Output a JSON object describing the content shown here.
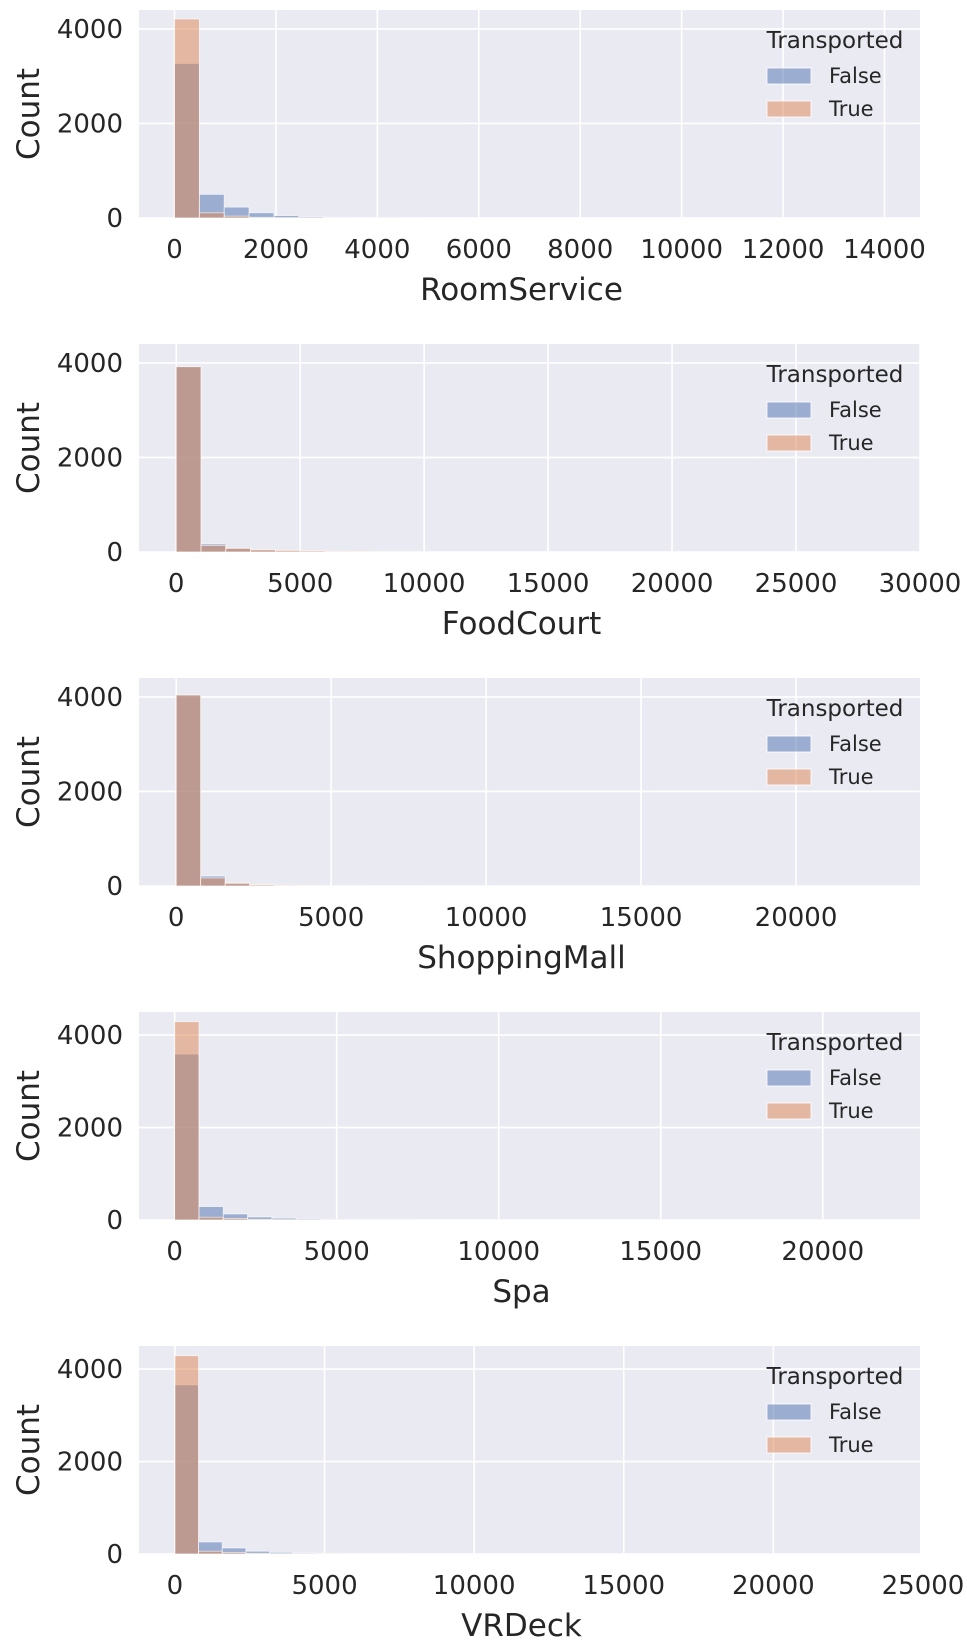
{
  "colors": {
    "background": "#EAEAF2",
    "grid": "#FFFFFF",
    "false_series": "#4C72B0",
    "true_series": "#DD8452",
    "overlap": "#8C7F94",
    "text": "#262626"
  },
  "chart_data": [
    {
      "type": "bar",
      "subtype": "overlaid-histogram",
      "xlabel": "RoomService",
      "ylabel": "Count",
      "xlim": [
        -700,
        14700
      ],
      "ylim": [
        0,
        4400
      ],
      "xticks": [
        0,
        2000,
        4000,
        6000,
        8000,
        10000,
        12000,
        14000
      ],
      "xtick_labels": [
        "0",
        "2000",
        "4000",
        "6000",
        "8000",
        "10000",
        "12000",
        "14000"
      ],
      "yticks": [
        0,
        2000,
        4000
      ],
      "ytick_labels": [
        "0",
        "2000",
        "4000"
      ],
      "grid": true,
      "bin_start": 0,
      "bin_width": 490,
      "legend": {
        "title": "Transported",
        "position": "top-right",
        "entries": [
          "False",
          "True"
        ]
      },
      "series": [
        {
          "name": "False",
          "values": [
            3270,
            500,
            230,
            110,
            50,
            25,
            12,
            6,
            4,
            2
          ]
        },
        {
          "name": "True",
          "values": [
            4210,
            110,
            40,
            15,
            8,
            4,
            2,
            1,
            0,
            0
          ]
        }
      ]
    },
    {
      "type": "bar",
      "subtype": "overlaid-histogram",
      "xlabel": "FoodCourt",
      "ylabel": "Count",
      "xlim": [
        -1500,
        30000
      ],
      "ylim": [
        0,
        4400
      ],
      "xticks": [
        0,
        5000,
        10000,
        15000,
        20000,
        25000,
        30000
      ],
      "xtick_labels": [
        "0",
        "5000",
        "10000",
        "15000",
        "20000",
        "25000",
        "30000"
      ],
      "yticks": [
        0,
        2000,
        4000
      ],
      "ytick_labels": [
        "0",
        "2000",
        "4000"
      ],
      "grid": true,
      "bin_start": 0,
      "bin_width": 1000,
      "legend": {
        "title": "Transported",
        "position": "top-right",
        "entries": [
          "False",
          "True"
        ]
      },
      "series": [
        {
          "name": "False",
          "values": [
            3920,
            170,
            70,
            35,
            20,
            10,
            5,
            3,
            2,
            1
          ]
        },
        {
          "name": "True",
          "values": [
            3920,
            140,
            80,
            50,
            35,
            25,
            15,
            10,
            6,
            4
          ]
        }
      ]
    },
    {
      "type": "bar",
      "subtype": "overlaid-histogram",
      "xlabel": "ShoppingMall",
      "ylabel": "Count",
      "xlim": [
        -1200,
        24000
      ],
      "ylim": [
        0,
        4400
      ],
      "xticks": [
        0,
        5000,
        10000,
        15000,
        20000
      ],
      "xtick_labels": [
        "0",
        "5000",
        "10000",
        "15000",
        "20000"
      ],
      "yticks": [
        0,
        2000,
        4000
      ],
      "ytick_labels": [
        "0",
        "2000",
        "4000"
      ],
      "grid": true,
      "bin_start": 0,
      "bin_width": 790,
      "legend": {
        "title": "Transported",
        "position": "top-right",
        "entries": [
          "False",
          "True"
        ]
      },
      "series": [
        {
          "name": "False",
          "values": [
            4040,
            210,
            50,
            20,
            10,
            5,
            3,
            2,
            1,
            1
          ]
        },
        {
          "name": "True",
          "values": [
            4040,
            170,
            60,
            25,
            15,
            8,
            4,
            2,
            1,
            1
          ]
        }
      ]
    },
    {
      "type": "bar",
      "subtype": "overlaid-histogram",
      "xlabel": "Spa",
      "ylabel": "Count",
      "xlim": [
        -1100,
        23000
      ],
      "ylim": [
        0,
        4500
      ],
      "xticks": [
        0,
        5000,
        10000,
        15000,
        20000
      ],
      "xtick_labels": [
        "0",
        "5000",
        "10000",
        "15000",
        "20000"
      ],
      "yticks": [
        0,
        2000,
        4000
      ],
      "ytick_labels": [
        "0",
        "2000",
        "4000"
      ],
      "grid": true,
      "bin_start": 0,
      "bin_width": 750,
      "legend": {
        "title": "Transported",
        "position": "top-right",
        "entries": [
          "False",
          "True"
        ]
      },
      "series": [
        {
          "name": "False",
          "values": [
            3590,
            290,
            130,
            65,
            40,
            25,
            15,
            10,
            6,
            4
          ]
        },
        {
          "name": "True",
          "values": [
            4290,
            60,
            30,
            15,
            8,
            5,
            3,
            2,
            1,
            1
          ]
        }
      ]
    },
    {
      "type": "bar",
      "subtype": "overlaid-histogram",
      "xlabel": "VRDeck",
      "ylabel": "Count",
      "xlim": [
        -1200,
        24900
      ],
      "ylim": [
        0,
        4500
      ],
      "xticks": [
        0,
        5000,
        10000,
        15000,
        20000,
        25000
      ],
      "xtick_labels": [
        "0",
        "5000",
        "10000",
        "15000",
        "20000",
        "25000"
      ],
      "yticks": [
        0,
        2000,
        4000
      ],
      "ytick_labels": [
        "0",
        "2000",
        "4000"
      ],
      "grid": true,
      "bin_start": 0,
      "bin_width": 790,
      "legend": {
        "title": "Transported",
        "position": "top-right",
        "entries": [
          "False",
          "True"
        ]
      },
      "series": [
        {
          "name": "False",
          "values": [
            3660,
            260,
            130,
            60,
            35,
            20,
            12,
            8,
            5,
            3
          ]
        },
        {
          "name": "True",
          "values": [
            4290,
            60,
            30,
            15,
            8,
            5,
            3,
            2,
            1,
            1
          ]
        }
      ]
    }
  ]
}
